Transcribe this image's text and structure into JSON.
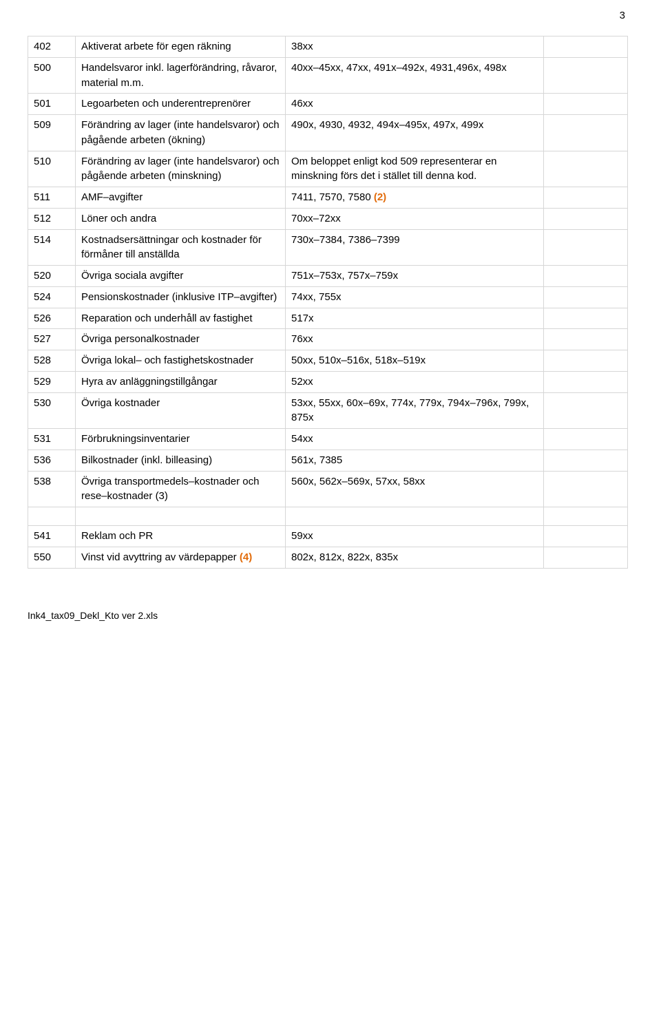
{
  "page_number": "3",
  "footer": "Ink4_tax09_Dekl_Kto ver 2.xls",
  "orange_color": "#e26b0a",
  "rows": [
    {
      "code": "402",
      "desc": "Aktiverat arbete för egen räkning",
      "acct": "38xx"
    },
    {
      "code": "500",
      "desc": "Handelsvaror inkl. lagerförändring, råvaror, material m.m.",
      "acct": "40xx–45xx, 47xx, 491x–492x, 4931,496x, 498x"
    },
    {
      "code": "501",
      "desc": "Legoarbeten och underentreprenörer",
      "acct": "46xx"
    },
    {
      "code": "509",
      "desc": "Förändring av lager (inte handelsvaror) och pågående arbeten (ökning)",
      "acct": "490x, 4930, 4932, 494x–495x, 497x, 499x"
    },
    {
      "code": "510",
      "desc": "Förändring av lager (inte handelsvaror) och pågående arbeten (minskning)",
      "acct": "Om beloppet enligt kod 509 representerar en minskning förs det i stället till denna kod."
    },
    {
      "code": "511",
      "desc": "AMF–avgifter",
      "acct": "7411, 7570, 7580 ",
      "suffix_orange": "(2)"
    },
    {
      "code": "512",
      "desc": "Löner och andra",
      "acct": "70xx–72xx"
    },
    {
      "code": "514",
      "desc": "Kostnadsersättningar och kostnader för förmåner till anställda",
      "acct": "730x–7384, 7386–7399"
    },
    {
      "code": "520",
      "desc": "Övriga sociala avgifter",
      "acct": "751x–753x, 757x–759x"
    },
    {
      "code": "524",
      "desc": "Pensionskostnader (inklusive ITP–avgifter)",
      "acct": "74xx, 755x"
    },
    {
      "code": "526",
      "desc": "Reparation och underhåll av fastighet",
      "acct": "517x"
    },
    {
      "code": "527",
      "desc": "Övriga personalkostnader",
      "acct": "76xx"
    },
    {
      "code": "528",
      "desc": "Övriga lokal– och fastighetskostnader",
      "acct": "50xx, 510x–516x, 518x–519x"
    },
    {
      "code": "529",
      "desc": "Hyra av anläggningstillgångar",
      "acct": "52xx"
    },
    {
      "code": "530",
      "desc": "Övriga kostnader",
      "acct": "53xx, 55xx, 60x–69x, 774x, 779x, 794x–796x, 799x, 875x"
    },
    {
      "code": "531",
      "desc": "Förbrukningsinventarier",
      "acct": "54xx"
    },
    {
      "code": "536",
      "desc": "Bilkostnader (inkl. billeasing)",
      "acct": "561x, 7385"
    },
    {
      "code": "538",
      "desc": "Övriga transportmedels–kostnader och rese–kostnader (3)",
      "acct": "560x, 562x–569x, 57xx, 58xx"
    }
  ],
  "rows2": [
    {
      "code": "541",
      "desc": "Reklam och PR",
      "acct": "59xx"
    },
    {
      "code": "550",
      "desc": "Vinst vid avyttring av värdepapper ",
      "desc_suffix_orange": "(4)",
      "acct": "802x, 812x, 822x, 835x"
    }
  ]
}
